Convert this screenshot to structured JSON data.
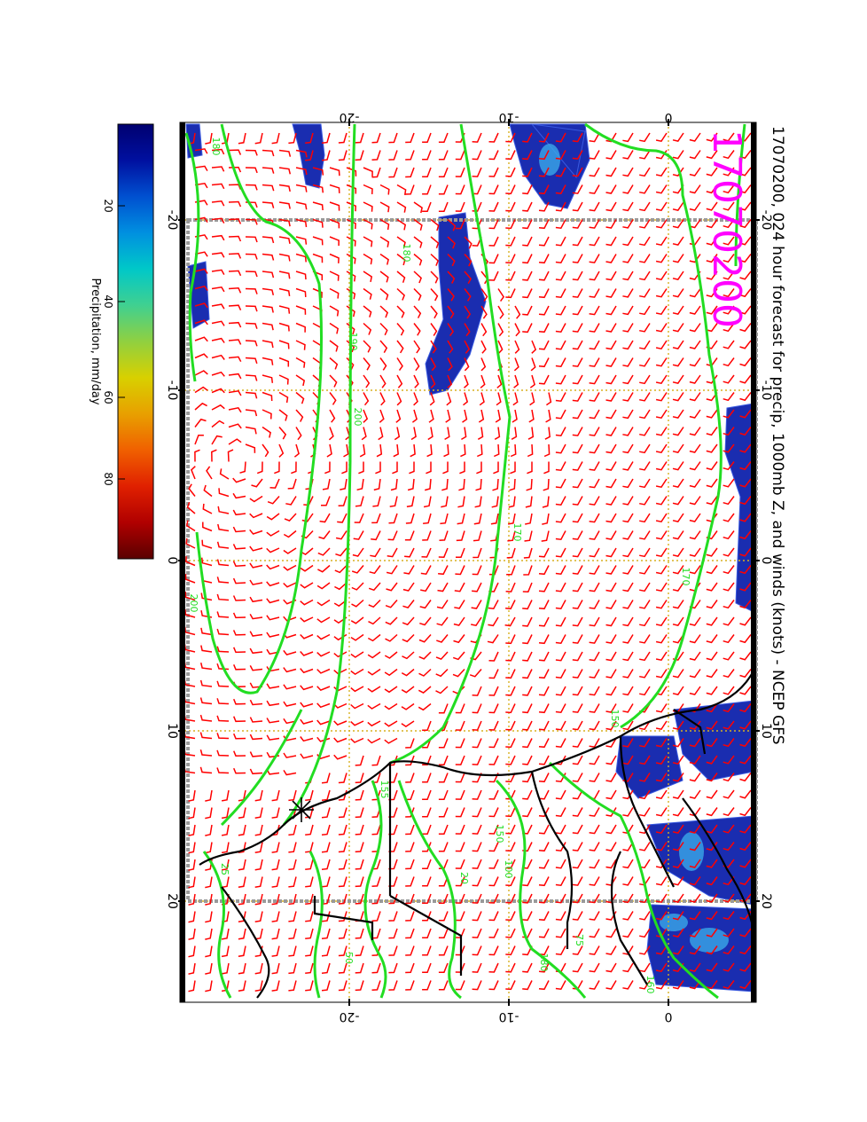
{
  "title": "17070200, 024 hour forecast for precip, 1000mb Z, and winds (knots) - NCEP GFS",
  "date_stamp": "17070200",
  "colorbar": {
    "label": "Precipitation, mm/day",
    "ticks": [
      "20",
      "40",
      "60",
      "80"
    ],
    "range": [
      0,
      100
    ],
    "colors": [
      "#5a0000",
      "#b00000",
      "#e02000",
      "#f06000",
      "#e8a000",
      "#d8d000",
      "#90d040",
      "#40d090",
      "#00c8c8",
      "#0090e0",
      "#0050d0",
      "#0010a0",
      "#000070"
    ]
  },
  "axes": {
    "longitude_ticks": [
      "-20",
      "-10",
      "0",
      "10",
      "20"
    ],
    "latitude_ticks": [
      "-20",
      "-10",
      "0"
    ]
  },
  "contour_labels": [
    "180",
    "180",
    "190",
    "200",
    "200",
    "170",
    "170",
    "150",
    "160",
    "180",
    "150",
    "155",
    "100",
    "75",
    "50",
    "25",
    "20"
  ],
  "colors": {
    "wind_barbs": "#ff0000",
    "contours": "#22dd22",
    "coastline": "#000000",
    "grid": "#d8b020",
    "title_stamp": "#ff00ff",
    "precip_blue": "#1a2db0"
  },
  "marker": "station-asterisk"
}
